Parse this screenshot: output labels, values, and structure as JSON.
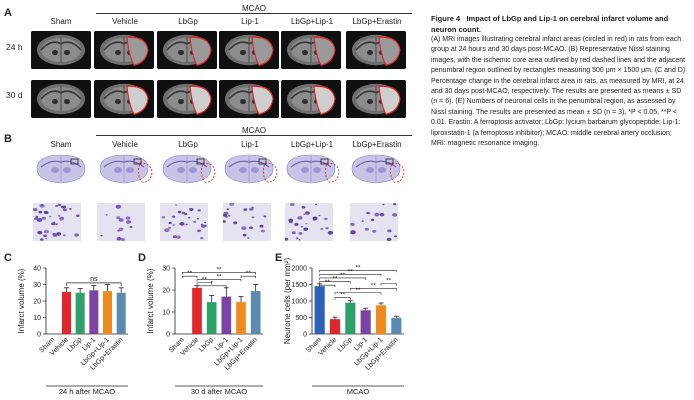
{
  "panels": {
    "a": "A",
    "b": "B",
    "c": "C",
    "d": "D",
    "e": "E"
  },
  "group_label": "MCAO",
  "groups": [
    "Sham",
    "Vehicle",
    "LbGp",
    "Lip-1",
    "LbGp+Lip-1",
    "LbGp+Erastin"
  ],
  "timepoints": [
    "24 h",
    "30 d"
  ],
  "caption": {
    "figure_no": "Figure 4",
    "title": "Impact of LbGp and Lip-1 on cerebral infarct volume and neuron count.",
    "text": "(A) MRI images illustrating cerebral infarct areas (circled in red) in rats from each group at 24 hours and 30 days post-MCAO. (B) Representative Nissl staining images, with the ischemic core area outlined by red dashed lines and the adjacent penumbral region outlined by rectangles measuring 500 μm × 1500 μm. (C and D) Percentage change in the cerebral infarct area in rats, as measured by MRI, at 24 and 30 days post-MCAO, respectively. The results are presented as means ± SD (n = 6). (E) Numbers of neuronal cells in the penumbral region, as assessed by Nissl staining. The results are presented as mean ± SD (n = 3), *P < 0.05, **P < 0.01. Erastin: A ferroptosis activator; LbGp: lycium barbarum glycopeptide; Lip-1: liproxstatin-1 (a ferroptosis inhibitor); MCAO: middle cerebral artery occlusion; MRI: magnetic resonance imaging."
  },
  "colors": {
    "Sham": "#2e62b8",
    "Vehicle": "#e0262a",
    "LbGp": "#2ea06a",
    "Lip-1": "#7a43a4",
    "LbGp+Lip-1": "#ef8a1e",
    "LbGp+Erastin": "#5b8bb0"
  },
  "chart_data": [
    {
      "id": "C",
      "type": "bar",
      "categories": [
        "Sham",
        "Vehicle",
        "LbGp",
        "Lip-1",
        "LbGp+Lip-1",
        "LbGp+Erastin"
      ],
      "values": [
        0,
        25.5,
        25,
        26.5,
        26,
        25
      ],
      "errors": [
        0,
        2.5,
        2.5,
        3,
        4,
        3
      ],
      "ylabel": "Infarct volume (%)",
      "xlabel": "24 h after MCAO",
      "ylim": [
        0,
        40
      ],
      "yticks": [
        0,
        10,
        20,
        30,
        40
      ],
      "annotations": [
        "ns"
      ]
    },
    {
      "id": "D",
      "type": "bar",
      "categories": [
        "Sham",
        "Vehicle",
        "LbGp",
        "Lip-1",
        "LbGp+Lip-1",
        "LbGp+Erastin"
      ],
      "values": [
        0,
        21,
        14.5,
        17,
        14.5,
        19.5
      ],
      "errors": [
        0,
        1,
        3,
        4,
        2.5,
        3
      ],
      "ylabel": "Infarct volume (%)",
      "xlabel": "30 d after MCAO",
      "ylim": [
        0,
        30
      ],
      "yticks": [
        0,
        10,
        20,
        30
      ],
      "annotations": [
        "**",
        "**",
        "**",
        "**",
        "*",
        "**"
      ]
    },
    {
      "id": "E",
      "type": "bar",
      "categories": [
        "Sham",
        "Vehicle",
        "LbGp",
        "Lip-1",
        "LbGp+Lip-1",
        "LbGp+Erastin"
      ],
      "values": [
        1450,
        450,
        950,
        720,
        870,
        490
      ],
      "errors": [
        70,
        60,
        60,
        60,
        70,
        50
      ],
      "ylabel": "Neurone cells (per mm²)",
      "xlabel": "MCAO",
      "ylim": [
        0,
        2000
      ],
      "yticks": [
        0,
        500,
        1000,
        1500,
        2000
      ],
      "annotations": [
        "**",
        "**",
        "**",
        "**",
        "**",
        "**",
        "**",
        "**",
        "**"
      ]
    }
  ]
}
